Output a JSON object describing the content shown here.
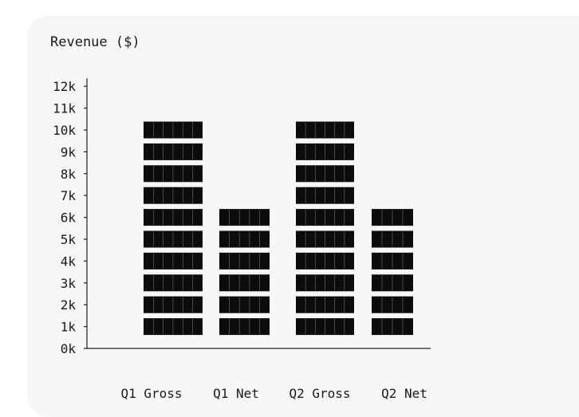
{
  "chart_data": {
    "type": "bar",
    "title": "Revenue ($)",
    "categories": [
      "Q1 Gross",
      "Q1 Net",
      "Q2 Gross",
      "Q2 Net"
    ],
    "values": [
      10000,
      6000,
      10000,
      6000
    ],
    "ylim": [
      0,
      12000
    ],
    "y_ticks": [
      0,
      1000,
      2000,
      3000,
      4000,
      5000,
      6000,
      7000,
      8000,
      9000,
      10000,
      11000,
      12000
    ],
    "y_tick_labels": [
      "0k",
      "1k",
      "2k",
      "3k",
      "4k",
      "5k",
      "6k",
      "7k",
      "8k",
      "9k",
      "10k",
      "11k",
      "12k"
    ],
    "grid": false,
    "legend": "none",
    "bar_color": "#0c0c0c",
    "background_color": "#f7f7f7"
  }
}
